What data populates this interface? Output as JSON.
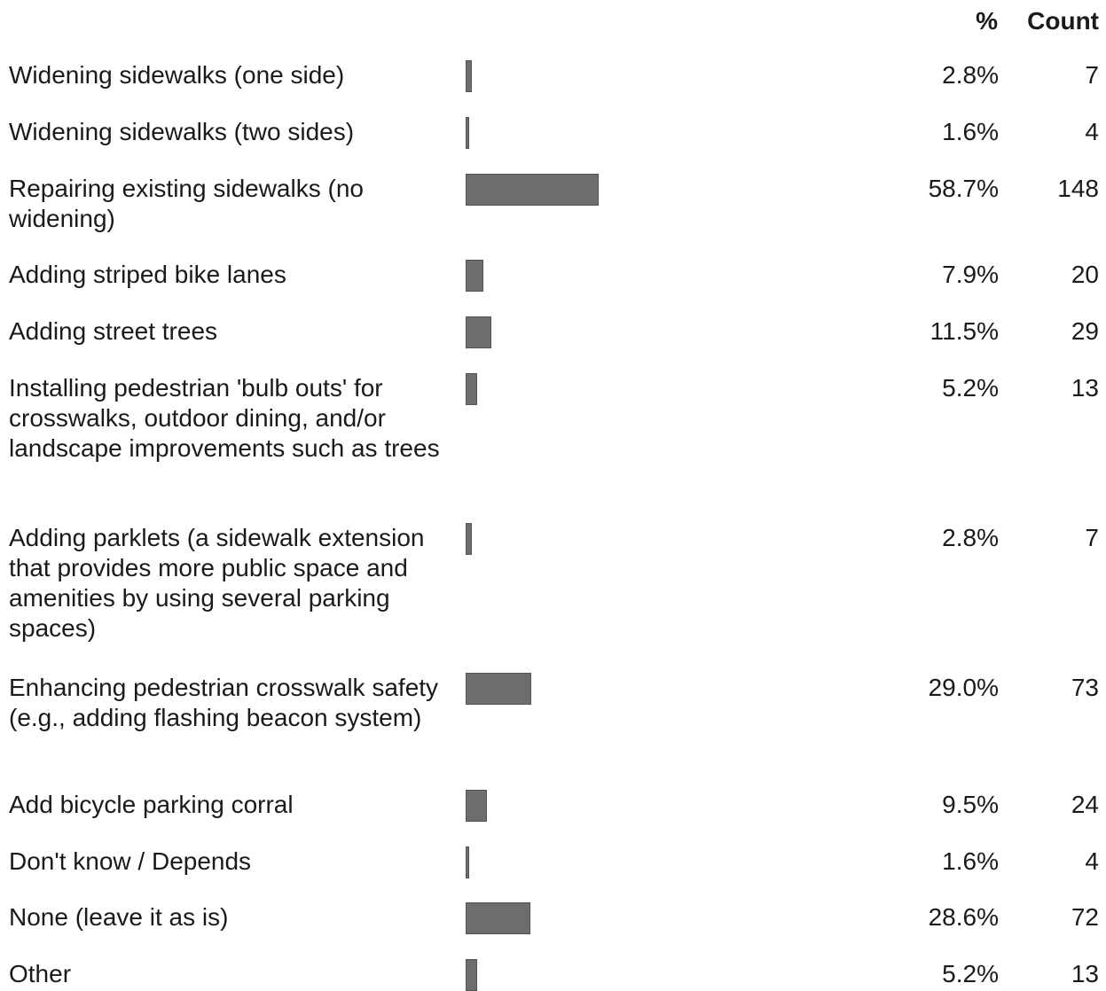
{
  "chart_data": {
    "type": "bar",
    "orientation": "horizontal",
    "headers": {
      "percent": "%",
      "count": "Count"
    },
    "bar_color": "#6d6d6d",
    "rows": [
      {
        "label": "Widening sidewalks (one side)",
        "percent": "2.8%",
        "value": 2.8,
        "count": "7"
      },
      {
        "label": "Widening sidewalks (two sides)",
        "percent": "1.6%",
        "value": 1.6,
        "count": "4"
      },
      {
        "label": "Repairing existing sidewalks (no widening)",
        "percent": "58.7%",
        "value": 58.7,
        "count": "148"
      },
      {
        "label": "Adding striped bike lanes",
        "percent": "7.9%",
        "value": 7.9,
        "count": "20"
      },
      {
        "label": "Adding street trees",
        "percent": "11.5%",
        "value": 11.5,
        "count": "29"
      },
      {
        "label": "Installing pedestrian 'bulb outs' for crosswalks, outdoor dining, and/or landscape improvements such as trees",
        "percent": "5.2%",
        "value": 5.2,
        "count": "13"
      },
      {
        "label": "Adding parklets (a sidewalk extension that provides more public space and amenities by using several parking spaces)",
        "percent": "2.8%",
        "value": 2.8,
        "count": "7"
      },
      {
        "label": "Enhancing pedestrian crosswalk safety (e.g., adding flashing beacon system)",
        "percent": "29.0%",
        "value": 29.0,
        "count": "73"
      },
      {
        "label": "Add bicycle parking corral",
        "percent": "9.5%",
        "value": 9.5,
        "count": "24"
      },
      {
        "label": "Don't know / Depends",
        "percent": "1.6%",
        "value": 1.6,
        "count": "4"
      },
      {
        "label": "None (leave it as is)",
        "percent": "28.6%",
        "value": 28.6,
        "count": "72"
      },
      {
        "label": "Other",
        "percent": "5.2%",
        "value": 5.2,
        "count": "13"
      }
    ]
  }
}
